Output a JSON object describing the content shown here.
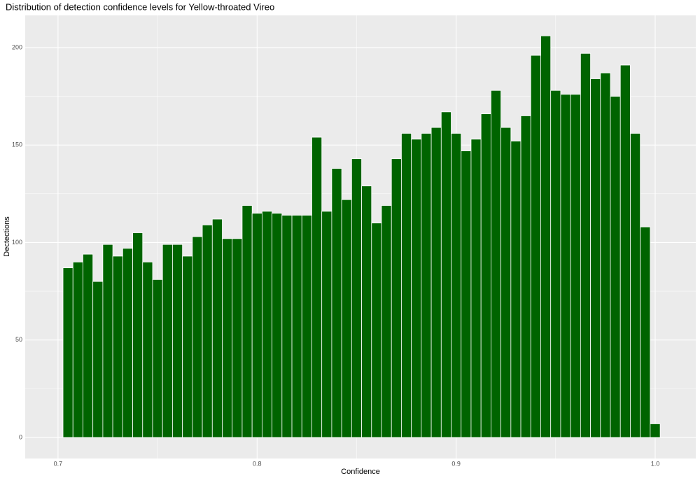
{
  "chart_data": {
    "type": "histogram",
    "title": "Distribution of detection confidence levels for Yellow-throated Vireo",
    "x_label": "Confidence",
    "y_label": "Dectections",
    "bins": [
      0.7025,
      0.7075,
      0.7125,
      0.7175,
      0.7225,
      0.7275,
      0.7325,
      0.7375,
      0.7425,
      0.7475,
      0.7525,
      0.7575,
      0.7625,
      0.7675,
      0.7725,
      0.7775,
      0.7825,
      0.7875,
      0.7925,
      0.7975,
      0.8025,
      0.8075,
      0.8125,
      0.8175,
      0.8225,
      0.8275,
      0.8325,
      0.8375,
      0.8425,
      0.8475,
      0.8525,
      0.8575,
      0.8625,
      0.8675,
      0.8725,
      0.8775,
      0.8825,
      0.8875,
      0.8925,
      0.8975,
      0.9025,
      0.9075,
      0.9125,
      0.9175,
      0.9225,
      0.9275,
      0.9325,
      0.9375,
      0.9425,
      0.9475,
      0.9525,
      0.9575,
      0.9625,
      0.9675,
      0.9725,
      0.9775,
      0.9825,
      0.9875,
      0.9925,
      0.9975,
      1.0025
    ],
    "values": [
      87,
      90,
      94,
      80,
      99,
      93,
      97,
      105,
      90,
      81,
      99,
      99,
      93,
      103,
      109,
      112,
      102,
      102,
      119,
      115,
      116,
      115,
      114,
      114,
      114,
      154,
      116,
      138,
      122,
      143,
      129,
      110,
      119,
      143,
      156,
      153,
      156,
      159,
      167,
      156,
      147,
      153,
      166,
      178,
      159,
      152,
      165,
      196,
      206,
      178,
      176,
      176,
      197,
      184,
      187,
      175,
      191,
      156,
      108,
      7
    ],
    "color": "#006400",
    "xlim": [
      0.6835,
      1.0204
    ],
    "xticks": [
      0.7,
      0.8,
      0.9,
      {
        "value": 1,
        "label": "1.0"
      }
    ],
    "ylim": [
      -10.8,
      216.5
    ],
    "yticks": [
      0,
      50,
      100,
      150,
      200
    ],
    "grid": true
  }
}
